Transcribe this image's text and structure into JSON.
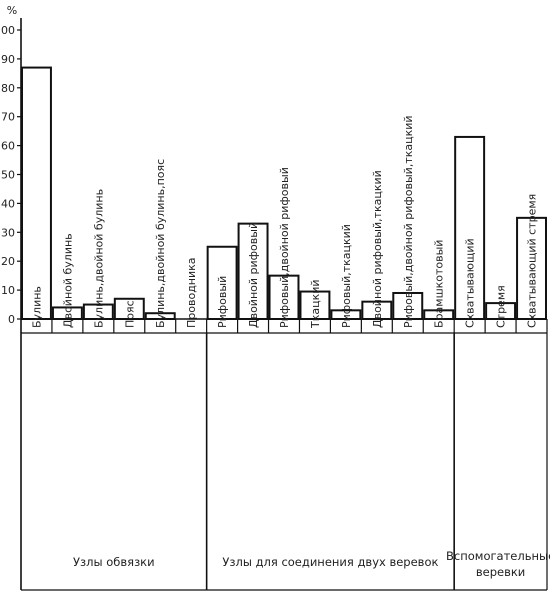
{
  "chart_data": {
    "type": "bar",
    "ylabel": "%",
    "ylim": [
      0,
      100
    ],
    "yticks": [
      0,
      10,
      20,
      30,
      40,
      50,
      60,
      70,
      80,
      90,
      100
    ],
    "categories": [
      "Булинь",
      "Двойной булинь",
      "Булинь,двойной булинь",
      "Пояс",
      "Булинь,двойной булинь,пояс",
      "Проводника",
      "Рифовый",
      "Двойной рифовый",
      "Рифовый,двойной рифовый",
      "Ткацкий",
      "Рифовый,ткацкий",
      "Двойной рифовый,ткацкий",
      "Рифовый,двойной рифовый,ткацкий",
      "Брамшкотовый",
      "Схватывающий",
      "Стремя",
      "Схватывающий стремя"
    ],
    "values": [
      87,
      4,
      5,
      7,
      2,
      0,
      25,
      33,
      15,
      9.5,
      3,
      6,
      9,
      3,
      63,
      5.5,
      35
    ],
    "groups": [
      {
        "label": "Узлы обвязки",
        "start": 0,
        "end": 5
      },
      {
        "label": "Узлы для соединения двух веревок",
        "start": 6,
        "end": 13
      },
      {
        "label": "Вспомогательные веревки",
        "start": 14,
        "end": 16
      }
    ]
  }
}
